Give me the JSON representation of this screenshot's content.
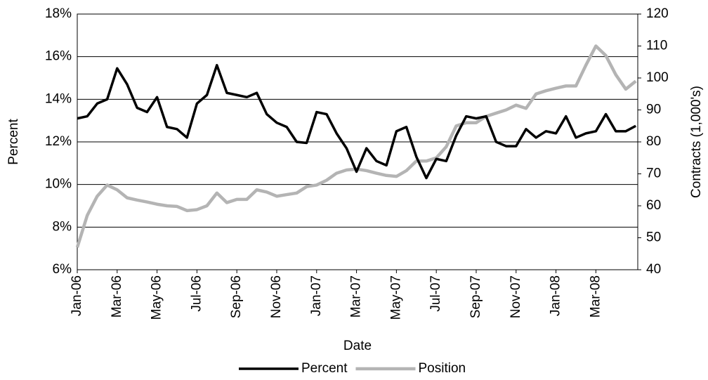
{
  "chart_data": {
    "type": "line",
    "x_label": "Date",
    "y_label": "Percent",
    "y2_label": "Contracts (1,000's)",
    "x": [
      0,
      0.5,
      1,
      1.5,
      2,
      2.5,
      3,
      3.5,
      4,
      4.5,
      5,
      5.5,
      6,
      6.5,
      7,
      7.5,
      8,
      8.5,
      9,
      9.5,
      10,
      10.5,
      11,
      11.5,
      12,
      12.5,
      13,
      13.5,
      14,
      14.5,
      15,
      15.5,
      16,
      16.5,
      17,
      17.5,
      18,
      18.5,
      19,
      19.5,
      20,
      20.5,
      21,
      21.5,
      22,
      22.5,
      23,
      23.5,
      24,
      24.5,
      25,
      25.5,
      26,
      26.5,
      27,
      27.5,
      28
    ],
    "xlim": [
      0,
      28.1
    ],
    "xticks": [
      {
        "value": 0,
        "label": "Jan-06"
      },
      {
        "value": 2,
        "label": "Mar-06"
      },
      {
        "value": 4,
        "label": "May-06"
      },
      {
        "value": 6,
        "label": "Jul-06"
      },
      {
        "value": 8,
        "label": "Sep-06"
      },
      {
        "value": 10,
        "label": "Nov-06"
      },
      {
        "value": 12,
        "label": "Jan-07"
      },
      {
        "value": 14,
        "label": "Mar-07"
      },
      {
        "value": 16,
        "label": "May-07"
      },
      {
        "value": 18,
        "label": "Jul-07"
      },
      {
        "value": 20,
        "label": "Sep-07"
      },
      {
        "value": 22,
        "label": "Nov-07"
      },
      {
        "value": 24,
        "label": "Jan-08"
      },
      {
        "value": 26,
        "label": "Mar-08"
      }
    ],
    "ylim": [
      6,
      18
    ],
    "yticks": [
      {
        "value": 6,
        "label": "6%"
      },
      {
        "value": 8,
        "label": "8%"
      },
      {
        "value": 10,
        "label": "10%"
      },
      {
        "value": 12,
        "label": "12%"
      },
      {
        "value": 14,
        "label": "14%"
      },
      {
        "value": 16,
        "label": "16%"
      },
      {
        "value": 18,
        "label": "18%"
      }
    ],
    "y2lim": [
      40,
      120
    ],
    "y2ticks": [
      40,
      50,
      60,
      70,
      80,
      90,
      100,
      110,
      120
    ],
    "grid": true,
    "legend": "bottom",
    "series": [
      {
        "name": "Percent",
        "color": "#000000",
        "values": [
          13.1,
          13.2,
          13.8,
          14.0,
          15.45,
          14.7,
          13.6,
          13.4,
          14.1,
          12.7,
          12.6,
          12.2,
          13.8,
          14.2,
          15.6,
          14.3,
          14.2,
          14.1,
          14.3,
          13.3,
          12.9,
          12.7,
          12.0,
          11.95,
          13.4,
          13.3,
          12.4,
          11.7,
          10.6,
          11.7,
          11.1,
          10.9,
          12.5,
          12.7,
          11.3,
          10.3,
          11.2,
          11.1,
          12.3,
          13.2,
          13.1,
          13.2,
          12.0,
          11.8,
          11.8,
          12.6,
          12.2,
          12.5,
          12.4,
          13.2,
          12.2,
          12.4,
          12.5,
          13.3,
          12.5,
          12.5,
          12.75
        ]
      },
      {
        "name": "Position",
        "color": "#b4b4b4",
        "axis": "y2",
        "values": [
          47,
          57,
          63,
          66.5,
          65,
          62.5,
          61.8,
          61.2,
          60.5,
          60,
          59.8,
          58.5,
          58.8,
          60,
          64,
          61,
          62,
          62,
          65,
          64.3,
          63,
          63.5,
          64,
          66,
          66.5,
          68,
          70.2,
          71.2,
          71.5,
          71,
          70.2,
          69.5,
          69.2,
          71,
          74,
          74,
          75,
          78.5,
          85,
          86,
          86,
          88,
          89,
          90,
          91.5,
          90.5,
          95,
          96,
          96.8,
          97.5,
          97.5,
          104,
          110,
          107,
          101,
          96.5,
          99
        ]
      }
    ]
  }
}
